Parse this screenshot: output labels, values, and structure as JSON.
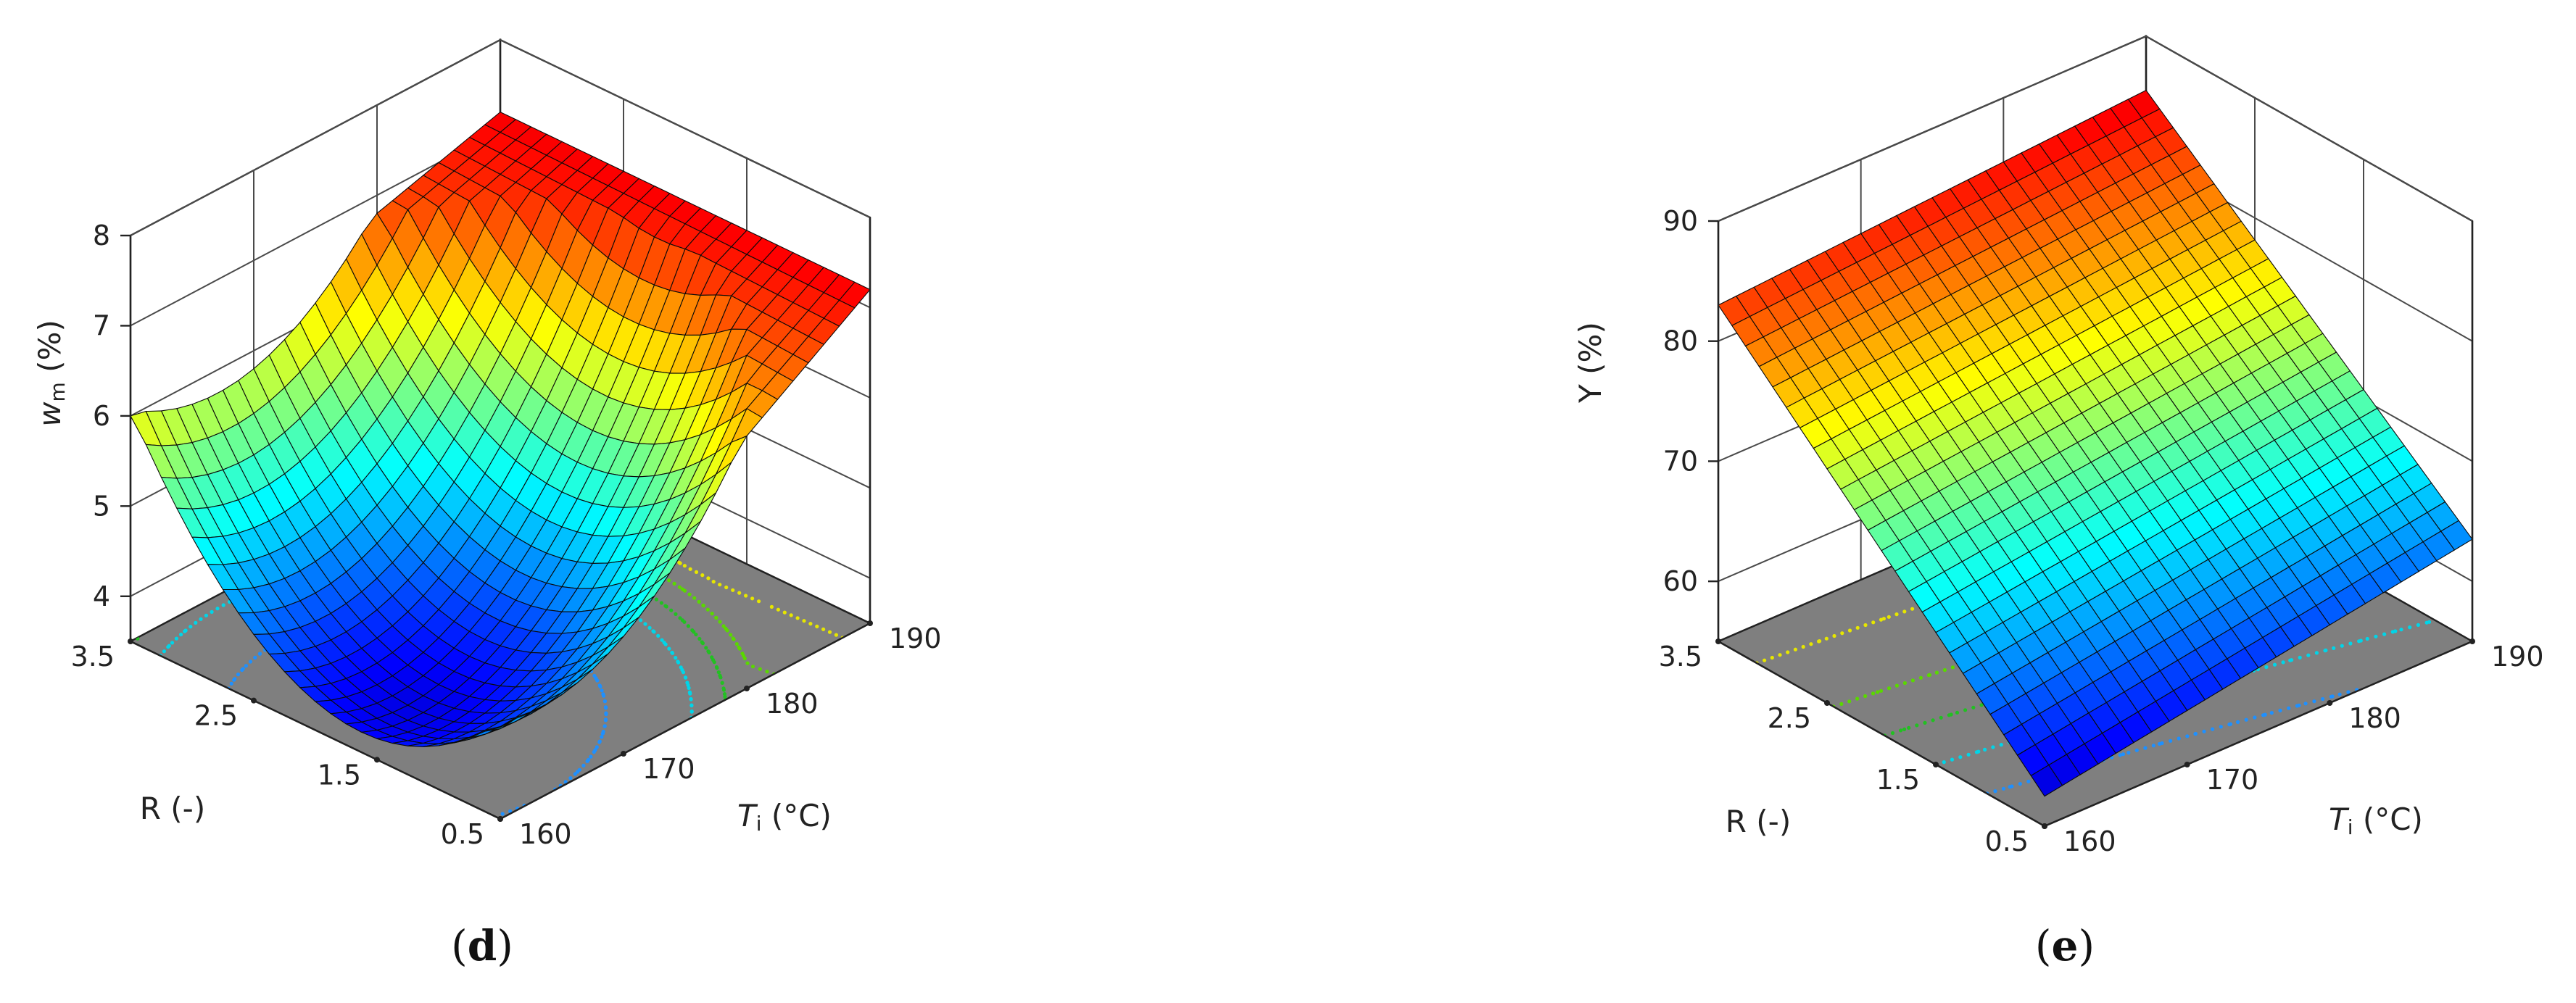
{
  "chart_data": [
    {
      "type": "surface",
      "panel": "(d)",
      "panel_paren_open": "(",
      "panel_letter": "d",
      "panel_paren_close": ")",
      "zlabel_main": "w",
      "zlabel_sub": "m",
      "zlabel_unit": " (%)",
      "xlabel_main": "T",
      "xlabel_sub": "i",
      "xlabel_unit": " (°C)",
      "ylabel": "R (-)",
      "x_ticks": [
        "160",
        "170",
        "180",
        "190"
      ],
      "y_ticks": [
        "0.5",
        "1.5",
        "2.5",
        "3.5"
      ],
      "z_ticks": [
        "4",
        "5",
        "6",
        "7",
        "8"
      ],
      "xlim": [
        160,
        190
      ],
      "ylim": [
        0.5,
        3.5
      ],
      "zlim": [
        3.5,
        8
      ],
      "contour_levels": [
        4.5,
        5.5,
        6.0,
        6.5,
        7.0
      ],
      "corners": [
        {
          "Ti": 160,
          "R": 0.5,
          "z": 4.5
        },
        {
          "Ti": 190,
          "R": 0.5,
          "z": 7.2
        },
        {
          "Ti": 160,
          "R": 3.5,
          "z": 6.0
        },
        {
          "Ti": 190,
          "R": 3.5,
          "z": 7.2
        }
      ],
      "minimum": {
        "Ti": 170,
        "R": 2.0,
        "z": 3.8
      }
    },
    {
      "type": "surface",
      "panel": "(e)",
      "panel_paren_open": "(",
      "panel_letter": "e",
      "panel_paren_close": ")",
      "zlabel": "Y (%)",
      "xlabel_main": "T",
      "xlabel_sub": "i",
      "xlabel_unit": " (°C)",
      "ylabel": "R (-)",
      "x_ticks": [
        "160",
        "170",
        "180",
        "190"
      ],
      "y_ticks": [
        "0.5",
        "1.5",
        "2.5",
        "3.5"
      ],
      "z_ticks": [
        "60",
        "70",
        "80",
        "90"
      ],
      "xlim": [
        160,
        190
      ],
      "ylim": [
        0.5,
        3.5
      ],
      "zlim": [
        55,
        90
      ],
      "contour_levels": [
        62,
        66,
        70,
        74,
        80
      ],
      "corners": [
        {
          "Ti": 160,
          "R": 0.5,
          "z": 57.5
        },
        {
          "Ti": 190,
          "R": 0.5,
          "z": 63.5
        },
        {
          "Ti": 160,
          "R": 3.5,
          "z": 83.0
        },
        {
          "Ti": 190,
          "R": 3.5,
          "z": 85.5
        }
      ]
    }
  ]
}
